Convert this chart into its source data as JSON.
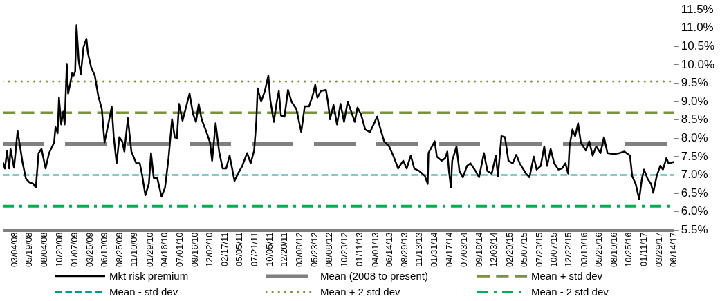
{
  "chart_data": {
    "type": "line",
    "xlim": [
      "2008-01-02",
      "2017-06-14"
    ],
    "xticks": [
      {
        "value": "2008-03-04",
        "label": "03/04/08"
      },
      {
        "value": "2008-05-19",
        "label": "05/19/08"
      },
      {
        "value": "2008-08-04",
        "label": "08/04/08"
      },
      {
        "value": "2008-10-20",
        "label": "10/20/08"
      },
      {
        "value": "2009-01-07",
        "label": "01/07/09"
      },
      {
        "value": "2009-03-25",
        "label": "03/25/09"
      },
      {
        "value": "2009-06-10",
        "label": "06/10/09"
      },
      {
        "value": "2009-08-25",
        "label": "08/25/09"
      },
      {
        "value": "2009-11-10",
        "label": "11/10/09"
      },
      {
        "value": "2010-01-29",
        "label": "01/29/10"
      },
      {
        "value": "2010-04-16",
        "label": "04/16/10"
      },
      {
        "value": "2010-07-01",
        "label": "07/01/10"
      },
      {
        "value": "2010-09-16",
        "label": "09/16/10"
      },
      {
        "value": "2010-12-02",
        "label": "12/02/10"
      },
      {
        "value": "2011-02-17",
        "label": "02/17/11"
      },
      {
        "value": "2011-05-05",
        "label": "05/05/11"
      },
      {
        "value": "2011-07-21",
        "label": "07/21/11"
      },
      {
        "value": "2011-10-05",
        "label": "10/05/11"
      },
      {
        "value": "2011-12-20",
        "label": "12/20/11"
      },
      {
        "value": "2012-03-08",
        "label": "03/08/12"
      },
      {
        "value": "2012-05-23",
        "label": "05/23/12"
      },
      {
        "value": "2012-08-08",
        "label": "08/08/12"
      },
      {
        "value": "2012-10-23",
        "label": "10/23/12"
      },
      {
        "value": "2013-01-11",
        "label": "01/11/13"
      },
      {
        "value": "2013-04-01",
        "label": "04/01/13"
      },
      {
        "value": "2013-06-14",
        "label": "06/14/13"
      },
      {
        "value": "2013-08-29",
        "label": "08/29/13"
      },
      {
        "value": "2013-11-13",
        "label": "11/13/13"
      },
      {
        "value": "2014-01-31",
        "label": "01/31/14"
      },
      {
        "value": "2014-04-17",
        "label": "04/17/14"
      },
      {
        "value": "2014-07-03",
        "label": "07/03/14"
      },
      {
        "value": "2014-09-18",
        "label": "09/18/14"
      },
      {
        "value": "2014-12-03",
        "label": "12/03/14"
      },
      {
        "value": "2015-02-20",
        "label": "02/20/15"
      },
      {
        "value": "2015-05-07",
        "label": "05/07/15"
      },
      {
        "value": "2015-07-23",
        "label": "07/23/15"
      },
      {
        "value": "2015-10-07",
        "label": "10/07/15"
      },
      {
        "value": "2015-12-22",
        "label": "12/22/15"
      },
      {
        "value": "2016-03-10",
        "label": "03/10/16"
      },
      {
        "value": "2016-05-25",
        "label": "05/25/16"
      },
      {
        "value": "2016-08-10",
        "label": "08/10/16"
      },
      {
        "value": "2016-10-25",
        "label": "10/25/16"
      },
      {
        "value": "2017-01-11",
        "label": "01/11/17"
      },
      {
        "value": "2017-03-29",
        "label": "03/29/17"
      },
      {
        "value": "2017-06-14",
        "label": "06/14/17"
      }
    ],
    "ylim": [
      5.5,
      11.5
    ],
    "yticks": [
      {
        "value": 5.5,
        "label": "5.5%"
      },
      {
        "value": 6,
        "label": "6.0%"
      },
      {
        "value": 6.5,
        "label": "6.5%"
      },
      {
        "value": 7,
        "label": "7.0%"
      },
      {
        "value": 7.5,
        "label": "7.5%"
      },
      {
        "value": 8,
        "label": "8.0%"
      },
      {
        "value": 8.5,
        "label": "8.5%"
      },
      {
        "value": 9,
        "label": "9.0%"
      },
      {
        "value": 9.5,
        "label": "9.5%"
      },
      {
        "value": 10,
        "label": "10.0%"
      },
      {
        "value": 10.5,
        "label": "10.5%"
      },
      {
        "value": 11,
        "label": "11.0%"
      },
      {
        "value": 11.5,
        "label": "11.5%"
      }
    ],
    "grid": false,
    "legend": "bottom",
    "ref_lines": [
      {
        "axis": "y",
        "value": 5.5,
        "color": "#808080"
      }
    ],
    "series": [
      {
        "name": "Mkt risk premium",
        "color": "#000000",
        "line_style": "solid",
        "x": [
          "2008-01-02",
          "2008-01-13",
          "2008-01-24",
          "2008-02-04",
          "2008-02-11",
          "2008-02-29",
          "2008-03-18",
          "2008-04-01",
          "2008-04-12",
          "2008-04-30",
          "2008-05-18",
          "2008-06-05",
          "2008-06-20",
          "2008-07-04",
          "2008-07-19",
          "2008-08-09",
          "2008-08-27",
          "2008-09-22",
          "2008-09-29",
          "2008-10-10",
          "2008-10-17",
          "2008-10-28",
          "2008-11-08",
          "2008-11-15",
          "2008-11-26",
          "2008-12-03",
          "2008-12-14",
          "2008-12-24",
          "2008-12-31",
          "2009-01-08",
          "2009-01-15",
          "2009-01-26",
          "2009-02-06",
          "2009-02-20",
          "2009-03-07",
          "2009-03-14",
          "2009-04-01",
          "2009-04-19",
          "2009-05-07",
          "2009-05-25",
          "2009-06-08",
          "2009-06-27",
          "2009-07-15",
          "2009-07-25",
          "2009-08-09",
          "2009-08-23",
          "2009-09-07",
          "2009-09-18",
          "2009-10-06",
          "2009-10-24",
          "2009-11-18",
          "2009-12-06",
          "2009-12-17",
          "2010-01-04",
          "2010-01-22",
          "2010-02-02",
          "2010-02-16",
          "2010-03-06",
          "2010-03-28",
          "2010-04-15",
          "2010-05-03",
          "2010-05-21",
          "2010-06-04",
          "2010-06-15",
          "2010-06-26",
          "2010-07-14",
          "2010-08-19",
          "2010-09-06",
          "2010-09-21",
          "2010-10-05",
          "2010-10-20",
          "2010-11-14",
          "2010-12-02",
          "2010-12-13",
          "2010-12-31",
          "2011-01-18",
          "2011-02-05",
          "2011-02-23",
          "2011-03-13",
          "2011-04-07",
          "2011-04-25",
          "2011-05-17",
          "2011-06-11",
          "2011-06-29",
          "2011-07-17",
          "2011-07-28",
          "2011-08-04",
          "2011-08-22",
          "2011-09-10",
          "2011-09-28",
          "2011-10-08",
          "2011-10-26",
          "2011-11-10",
          "2011-11-21",
          "2011-12-02",
          "2011-12-20",
          "2012-01-07",
          "2012-01-25",
          "2012-02-19",
          "2012-03-15",
          "2012-04-02",
          "2012-04-24",
          "2012-05-12",
          "2012-05-26",
          "2012-06-06",
          "2012-06-24",
          "2012-07-20",
          "2012-07-30",
          "2012-08-10",
          "2012-08-28",
          "2012-09-15",
          "2012-10-03",
          "2012-10-21",
          "2012-11-09",
          "2012-11-27",
          "2012-12-15",
          "2012-12-29",
          "2013-01-16",
          "2013-02-07",
          "2013-03-04",
          "2013-03-22",
          "2013-04-09",
          "2013-04-27",
          "2013-05-15",
          "2013-06-10",
          "2013-07-01",
          "2013-07-26",
          "2013-08-21",
          "2013-09-08",
          "2013-09-29",
          "2013-10-17",
          "2013-11-12",
          "2013-12-11",
          "2013-12-25",
          "2013-12-29",
          "2014-01-30",
          "2014-02-10",
          "2014-03-07",
          "2014-03-25",
          "2014-04-05",
          "2014-04-12",
          "2014-04-23",
          "2014-04-30",
          "2014-05-22",
          "2014-06-06",
          "2014-06-24",
          "2014-07-15",
          "2014-08-02",
          "2014-08-28",
          "2014-09-15",
          "2014-10-10",
          "2014-10-28",
          "2014-11-19",
          "2014-12-10",
          "2014-12-21",
          "2015-01-08",
          "2015-01-26",
          "2015-02-13",
          "2015-03-07",
          "2015-03-25",
          "2015-04-12",
          "2015-05-14",
          "2015-06-01",
          "2015-06-23",
          "2015-07-08",
          "2015-07-29",
          "2015-08-16",
          "2015-08-31",
          "2015-09-18",
          "2015-10-06",
          "2015-10-28",
          "2015-11-15",
          "2015-12-03",
          "2015-12-17",
          "2015-12-24",
          "2016-01-08",
          "2016-01-22",
          "2016-02-06",
          "2016-02-20",
          "2016-03-16",
          "2016-04-03",
          "2016-04-21",
          "2016-05-09",
          "2016-05-31",
          "2016-06-18",
          "2016-07-06",
          "2016-08-08",
          "2016-09-06",
          "2016-10-01",
          "2016-10-30",
          "2016-11-10",
          "2016-11-28",
          "2016-12-16",
          "2016-12-30",
          "2017-01-10",
          "2017-01-28",
          "2017-02-15",
          "2017-02-26",
          "2017-03-16",
          "2017-04-03",
          "2017-04-17",
          "2017-05-05",
          "2017-05-16",
          "2017-06-14"
        ],
        "values": [
          7.36,
          7.18,
          7.65,
          7.18,
          7.71,
          7.2,
          8.2,
          7.74,
          7.36,
          6.9,
          6.8,
          6.77,
          6.66,
          7.6,
          7.71,
          7.18,
          7.6,
          7.89,
          8.31,
          8.14,
          9.11,
          8.38,
          8.73,
          8.38,
          10.03,
          9.22,
          9.5,
          9.78,
          9.71,
          9.82,
          11.08,
          10.13,
          9.75,
          10.48,
          10.71,
          10.34,
          9.92,
          9.71,
          9.15,
          8.8,
          7.89,
          8.38,
          8.86,
          8.06,
          7.32,
          8.03,
          7.92,
          7.64,
          8.55,
          7.64,
          7.32,
          7.32,
          7.04,
          6.45,
          6.77,
          7.6,
          6.92,
          6.92,
          6.41,
          6.66,
          7.46,
          8.52,
          8.03,
          8.0,
          8.94,
          8.48,
          9.22,
          8.66,
          8.45,
          8.94,
          8.52,
          8.17,
          7.89,
          7.39,
          8.41,
          7.64,
          7.18,
          7.18,
          7.53,
          6.84,
          7.04,
          7.25,
          7.6,
          7.32,
          7.67,
          8.45,
          9.36,
          9.0,
          9.29,
          9.71,
          9.04,
          8.45,
          8.98,
          9.29,
          8.62,
          8.59,
          9.32,
          9.0,
          8.8,
          8.17,
          8.87,
          8.87,
          9.15,
          9.46,
          9.11,
          9.29,
          9.32,
          9.0,
          8.52,
          8.91,
          8.38,
          8.94,
          8.45,
          9.0,
          8.73,
          8.45,
          8.84,
          8.66,
          8.24,
          8.17,
          8.38,
          8.59,
          8.24,
          7.92,
          7.78,
          7.53,
          7.18,
          7.39,
          7.18,
          7.53,
          7.18,
          7.11,
          6.97,
          6.76,
          7.6,
          7.92,
          7.5,
          7.39,
          7.46,
          7.64,
          7.18,
          6.66,
          7.39,
          7.78,
          7.11,
          6.94,
          7.25,
          7.32,
          7.11,
          6.94,
          7.6,
          7.11,
          7.04,
          7.53,
          6.97,
          8.06,
          8.03,
          7.39,
          7.32,
          7.55,
          7.32,
          7.04,
          6.94,
          7.5,
          7.15,
          7.25,
          7.78,
          7.25,
          7.71,
          7.32,
          7.15,
          7.18,
          7.32,
          7.04,
          7.78,
          8.24,
          8.06,
          8.41,
          7.89,
          7.67,
          7.92,
          7.53,
          7.78,
          7.6,
          8.03,
          7.6,
          7.57,
          7.6,
          7.64,
          7.53,
          6.97,
          6.76,
          6.34,
          6.9,
          7.15,
          6.9,
          6.76,
          6.52,
          6.97,
          7.25,
          7.15,
          7.46,
          7.32,
          7.36
        ]
      },
      {
        "name": "Mean (2008 to present)",
        "color": "#808080",
        "line_style": "dashed",
        "x": [
          "2008-01-02",
          "2017-06-14"
        ],
        "values": [
          7.85,
          7.85
        ]
      },
      {
        "name": "Mean + std dev",
        "color": "#77933c",
        "line_style": "dashed",
        "x": [
          "2008-01-02",
          "2017-06-14"
        ],
        "values": [
          8.7,
          8.7
        ]
      },
      {
        "name": "Mean - std dev",
        "color": "#009a93",
        "line_style": "dashed",
        "x": [
          "2008-01-02",
          "2017-06-14"
        ],
        "values": [
          7.0,
          7.0
        ]
      },
      {
        "name": "Mean + 2 std dev",
        "color": "#77933c",
        "line_style": "dotted",
        "x": [
          "2008-01-02",
          "2017-06-14"
        ],
        "values": [
          9.55,
          9.55
        ]
      },
      {
        "name": "Mean - 2 std dev",
        "color": "#00b050",
        "line_style": "dashdot",
        "x": [
          "2008-01-02",
          "2017-06-14"
        ],
        "values": [
          6.15,
          6.15
        ]
      }
    ]
  }
}
